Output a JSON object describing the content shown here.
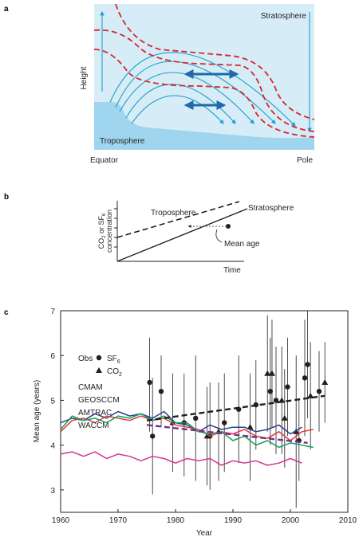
{
  "panel_a": {
    "letter": "a",
    "ylabel": "Height",
    "region_top": "Stratosphere",
    "region_bottom": "Troposphere",
    "x_left": "Equator",
    "x_right": "Pole",
    "colors": {
      "sky": "#d6ecf7",
      "trop": "#9fd5ee",
      "arrow": "#1aa0c8",
      "mix": "#1f6aa8",
      "dash": "#d7282f"
    }
  },
  "panel_b": {
    "letter": "b",
    "ylabel_line1": "CO",
    "ylabel_sub1": "2",
    "ylabel_mid": " or SF",
    "ylabel_sub2": "6",
    "ylabel_line2": "concentration",
    "xlabel": "Time",
    "trop_label": "Troposphere",
    "strat_label": "Stratosphere",
    "mean_age_label": "Mean age"
  },
  "chart_data": {
    "type": "line",
    "title": "",
    "panel_letter": "c",
    "xlabel": "Year",
    "ylabel": "Mean age (years)",
    "xlim": [
      1960,
      2010
    ],
    "ylim": [
      2.5,
      7
    ],
    "xticks": [
      1960,
      1970,
      1980,
      1990,
      2000,
      2010
    ],
    "yticks": [
      3,
      4,
      5,
      6,
      7
    ],
    "legend": {
      "obs_label": "Obs",
      "sf6_label": "SF",
      "sf6_sub": "6",
      "co2_label": "CO",
      "co2_sub": "2"
    },
    "series": [
      {
        "name": "CMAM",
        "color": "#2b3f8f",
        "x": [
          1960,
          1962,
          1964,
          1966,
          1968,
          1970,
          1972,
          1974,
          1976,
          1978,
          1980,
          1982,
          1984,
          1986,
          1988,
          1990,
          1992,
          1994,
          1996,
          1998,
          2000,
          2002
        ],
        "y": [
          4.5,
          4.6,
          4.55,
          4.7,
          4.6,
          4.75,
          4.65,
          4.7,
          4.6,
          4.75,
          4.5,
          4.45,
          4.3,
          4.45,
          4.35,
          4.4,
          4.4,
          4.3,
          4.35,
          4.45,
          4.25,
          4.4
        ]
      },
      {
        "name": "GEOSCCM",
        "color": "#e03a3e",
        "x": [
          1960,
          1962,
          1964,
          1966,
          1968,
          1970,
          1972,
          1974,
          1976,
          1978,
          1980,
          1982,
          1984,
          1986,
          1988,
          1990,
          1992,
          1994,
          1996,
          1998,
          2000,
          2002,
          2004
        ],
        "y": [
          4.3,
          4.55,
          4.6,
          4.5,
          4.65,
          4.6,
          4.55,
          4.65,
          4.55,
          4.6,
          4.45,
          4.4,
          4.35,
          4.2,
          4.3,
          4.25,
          4.35,
          4.2,
          4.15,
          4.3,
          4.1,
          4.3,
          4.35
        ]
      },
      {
        "name": "AMTRAC",
        "color": "#12a15a",
        "x": [
          1960,
          1962,
          1964,
          1966,
          1968,
          1970,
          1972,
          1974,
          1976,
          1978,
          1980,
          1982,
          1984,
          1986,
          1988,
          1990,
          1992,
          1994,
          1996,
          1998,
          2000,
          2002,
          2004
        ],
        "y": [
          4.35,
          4.65,
          4.55,
          4.6,
          4.5,
          4.65,
          4.6,
          4.7,
          4.55,
          4.65,
          4.5,
          4.5,
          4.3,
          4.25,
          4.3,
          4.1,
          4.2,
          4.0,
          4.1,
          3.95,
          4.05,
          4.0,
          3.95
        ]
      },
      {
        "name": "WACCM",
        "color": "#d8338f",
        "x": [
          1960,
          1962,
          1964,
          1966,
          1968,
          1970,
          1972,
          1974,
          1976,
          1978,
          1980,
          1982,
          1984,
          1986,
          1988,
          1990,
          1992,
          1994,
          1996,
          1998,
          2000,
          2002
        ],
        "y": [
          3.8,
          3.85,
          3.75,
          3.85,
          3.7,
          3.8,
          3.75,
          3.65,
          3.75,
          3.7,
          3.6,
          3.7,
          3.65,
          3.7,
          3.55,
          3.65,
          3.6,
          3.65,
          3.55,
          3.6,
          3.7,
          3.6
        ]
      }
    ],
    "trend_lines": [
      {
        "color": "#231f20",
        "x": [
          1975,
          2006
        ],
        "y": [
          4.55,
          5.1
        ]
      },
      {
        "color": "#7b2d8b",
        "x": [
          1975,
          2003
        ],
        "y": [
          4.45,
          4.05
        ]
      }
    ],
    "observations": [
      {
        "marker": "circle",
        "x": 1975.5,
        "y": 5.4,
        "lo": 4.3,
        "hi": 6.4
      },
      {
        "marker": "circle",
        "x": 1976,
        "y": 4.2,
        "lo": 2.9,
        "hi": 5.5
      },
      {
        "marker": "circle",
        "x": 1977.5,
        "y": 5.2,
        "lo": 4.4,
        "hi": 6.0
      },
      {
        "marker": "circle",
        "x": 1981.5,
        "y": 4.5,
        "lo": 3.3,
        "hi": 5.6
      },
      {
        "marker": "circle",
        "x": 1983.5,
        "y": 4.6,
        "lo": 3.2,
        "hi": 6.0
      },
      {
        "marker": "circle",
        "x": 1986,
        "y": 4.2,
        "lo": 3.0,
        "hi": 5.4
      },
      {
        "marker": "circle",
        "x": 1988.5,
        "y": 4.5,
        "lo": 3.4,
        "hi": 5.6
      },
      {
        "marker": "circle",
        "x": 1991,
        "y": 4.8,
        "lo": 3.6,
        "hi": 6.0
      },
      {
        "marker": "circle",
        "x": 1994,
        "y": 4.9,
        "lo": 3.9,
        "hi": 5.9
      },
      {
        "marker": "circle",
        "x": 1996.5,
        "y": 5.2,
        "lo": 4.0,
        "hi": 6.4
      },
      {
        "marker": "circle",
        "x": 1997.5,
        "y": 5.0,
        "lo": 3.8,
        "hi": 6.2
      },
      {
        "marker": "circle",
        "x": 1999.5,
        "y": 5.3,
        "lo": 4.2,
        "hi": 6.4
      },
      {
        "marker": "circle",
        "x": 2001.5,
        "y": 4.1,
        "lo": 3.2,
        "hi": 5.0
      },
      {
        "marker": "circle",
        "x": 2002.5,
        "y": 5.5,
        "lo": 4.2,
        "hi": 6.8
      },
      {
        "marker": "circle",
        "x": 2003,
        "y": 5.8,
        "lo": 4.6,
        "hi": 7.0
      },
      {
        "marker": "circle",
        "x": 2005,
        "y": 5.2,
        "lo": 4.3,
        "hi": 6.1
      },
      {
        "marker": "triangle",
        "x": 1979.5,
        "y": 4.5,
        "lo": 3.4,
        "hi": 5.6
      },
      {
        "marker": "triangle",
        "x": 1985.5,
        "y": 4.2,
        "lo": 3.1,
        "hi": 5.3
      },
      {
        "marker": "triangle",
        "x": 1987.5,
        "y": 4.3,
        "lo": 3.2,
        "hi": 5.4
      },
      {
        "marker": "triangle",
        "x": 1993,
        "y": 4.4,
        "lo": 3.2,
        "hi": 5.6
      },
      {
        "marker": "triangle",
        "x": 1996,
        "y": 5.6,
        "lo": 4.3,
        "hi": 6.9
      },
      {
        "marker": "triangle",
        "x": 1996.8,
        "y": 5.6,
        "lo": 4.4,
        "hi": 6.8
      },
      {
        "marker": "triangle",
        "x": 1998.5,
        "y": 5.0,
        "lo": 3.8,
        "hi": 6.2
      },
      {
        "marker": "triangle",
        "x": 1999,
        "y": 4.6,
        "lo": 3.5,
        "hi": 5.7
      },
      {
        "marker": "triangle",
        "x": 2001,
        "y": 4.3,
        "lo": 2.6,
        "hi": 6.0
      },
      {
        "marker": "triangle",
        "x": 2003.5,
        "y": 5.1,
        "lo": 3.9,
        "hi": 6.3
      },
      {
        "marker": "triangle",
        "x": 2006,
        "y": 5.4,
        "lo": 4.5,
        "hi": 6.3
      }
    ]
  }
}
